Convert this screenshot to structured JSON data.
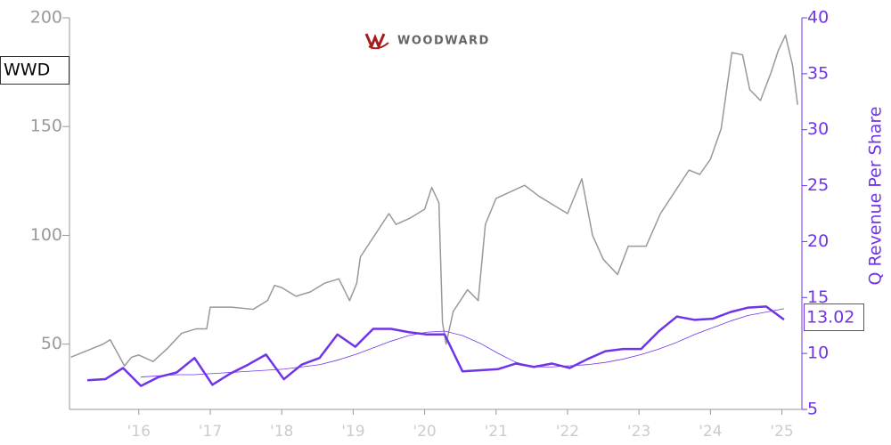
{
  "chart_data": {
    "type": "line",
    "logo_text": "WOODWARD",
    "y2_label": "Q Revenue Per Share",
    "xlim": [
      2015.03,
      2025.28
    ],
    "xticks": [
      {
        "value": 2016,
        "label": "'16"
      },
      {
        "value": 2017,
        "label": "'17"
      },
      {
        "value": 2018,
        "label": "'18"
      },
      {
        "value": 2019,
        "label": "'19"
      },
      {
        "value": 2020,
        "label": "'20"
      },
      {
        "value": 2021,
        "label": "'21"
      },
      {
        "value": 2022,
        "label": "'22"
      },
      {
        "value": 2023,
        "label": "'23"
      },
      {
        "value": 2024,
        "label": "'24"
      },
      {
        "value": 2025,
        "label": "'25"
      }
    ],
    "ylim": [
      20,
      200
    ],
    "yticks": [
      50,
      100,
      150,
      200
    ],
    "y2lim": [
      5,
      40
    ],
    "y2ticks": [
      5,
      10,
      15,
      20,
      25,
      30,
      35,
      40
    ],
    "series": [
      {
        "name": "WWD",
        "color": "#999999",
        "width": 1.5,
        "x": [
          2015.05,
          2015.2,
          2015.35,
          2015.5,
          2015.6,
          2015.8,
          2015.9,
          2016.0,
          2016.2,
          2016.4,
          2016.6,
          2016.8,
          2016.95,
          2017.0,
          2017.3,
          2017.6,
          2017.8,
          2017.9,
          2018.0,
          2018.2,
          2018.4,
          2018.6,
          2018.8,
          2018.95,
          2019.05,
          2019.1,
          2019.3,
          2019.5,
          2019.6,
          2019.8,
          2020.0,
          2020.1,
          2020.2,
          2020.25,
          2020.3,
          2020.4,
          2020.6,
          2020.75,
          2020.85,
          2021.0,
          2021.2,
          2021.4,
          2021.6,
          2021.8,
          2022.0,
          2022.2,
          2022.35,
          2022.5,
          2022.7,
          2022.85,
          2023.1,
          2023.3,
          2023.5,
          2023.7,
          2023.85,
          2024.0,
          2024.15,
          2024.3,
          2024.45,
          2024.55,
          2024.7,
          2024.85,
          2024.95,
          2025.05,
          2025.15,
          2025.22
        ],
        "values": [
          44,
          46,
          48,
          50,
          52,
          40,
          44,
          45,
          42,
          48,
          55,
          57,
          57,
          67,
          67,
          66,
          70,
          77,
          76,
          72,
          74,
          78,
          80,
          70,
          78,
          90,
          100,
          110,
          105,
          108,
          112,
          122,
          115,
          60,
          50,
          65,
          75,
          70,
          105,
          117,
          120,
          123,
          118,
          114,
          110,
          126,
          100,
          89,
          82,
          95,
          95,
          110,
          120,
          130,
          128,
          135,
          149,
          184,
          183,
          167,
          162,
          175,
          185,
          192,
          178,
          160
        ]
      },
      {
        "color": "#7034e8",
        "width": 2.5,
        "axis": "y2",
        "x": [
          2015.28,
          2015.53,
          2015.78,
          2016.03,
          2016.28,
          2016.53,
          2016.78,
          2017.03,
          2017.28,
          2017.53,
          2017.78,
          2018.03,
          2018.28,
          2018.53,
          2018.78,
          2019.03,
          2019.28,
          2019.53,
          2019.78,
          2020.03,
          2020.28,
          2020.53,
          2020.78,
          2021.03,
          2021.28,
          2021.53,
          2021.78,
          2022.03,
          2022.28,
          2022.53,
          2022.78,
          2023.03,
          2023.28,
          2023.53,
          2023.78,
          2024.03,
          2024.28,
          2024.53,
          2024.78,
          2025.03
        ],
        "values": [
          7.6,
          7.7,
          8.7,
          7.1,
          7.9,
          8.3,
          9.6,
          7.2,
          8.2,
          9.0,
          9.9,
          7.7,
          9.0,
          9.6,
          11.7,
          10.6,
          12.2,
          12.2,
          11.9,
          11.7,
          11.7,
          8.4,
          8.5,
          8.6,
          9.1,
          8.8,
          9.1,
          8.7,
          9.5,
          10.2,
          10.4,
          10.4,
          12.0,
          13.3,
          13.0,
          13.1,
          13.7,
          14.1,
          14.2,
          13.02
        ]
      },
      {
        "color": "#7034e8",
        "width": 0.8,
        "axis": "y2",
        "x": [
          2016.03,
          2016.28,
          2016.53,
          2016.78,
          2017.03,
          2017.28,
          2017.53,
          2017.78,
          2018.03,
          2018.28,
          2018.53,
          2018.78,
          2019.03,
          2019.28,
          2019.53,
          2019.78,
          2020.03,
          2020.28,
          2020.53,
          2020.78,
          2021.03,
          2021.28,
          2021.53,
          2021.78,
          2022.03,
          2022.28,
          2022.53,
          2022.78,
          2023.03,
          2023.28,
          2023.53,
          2023.78,
          2024.03,
          2024.28,
          2024.53,
          2024.78,
          2025.03
        ],
        "values": [
          7.9,
          8.0,
          8.1,
          8.1,
          8.2,
          8.3,
          8.4,
          8.5,
          8.6,
          8.8,
          9.0,
          9.4,
          9.9,
          10.5,
          11.1,
          11.6,
          11.9,
          12.0,
          11.6,
          10.9,
          10.0,
          9.2,
          8.8,
          8.8,
          8.9,
          9.0,
          9.2,
          9.5,
          9.9,
          10.4,
          11.0,
          11.7,
          12.3,
          12.9,
          13.4,
          13.7,
          14.0
        ]
      }
    ]
  }
}
